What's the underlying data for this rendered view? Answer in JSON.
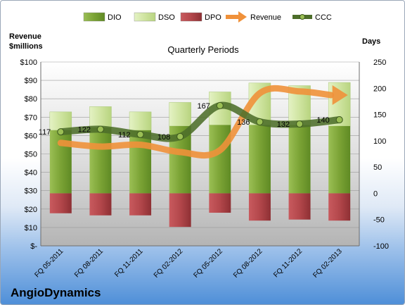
{
  "company": "AngioDynamics",
  "colors": {
    "dio": "#7ba335",
    "dso": "#d3e8a6",
    "dpo": "#b3474b",
    "revenue": "#f0913a",
    "ccc": "#4d6e2a"
  },
  "chart_data": {
    "type": "bar",
    "title": "Quarterly Periods",
    "y_left_label": "Revenue $millions",
    "y_right_label": "Days",
    "y_left_ticks": [
      "$-",
      "$10",
      "$20",
      "$30",
      "$40",
      "$50",
      "$60",
      "$70",
      "$80",
      "$90",
      "$100"
    ],
    "y_right_ticks": [
      "-100",
      "-50",
      "0",
      "50",
      "100",
      "150",
      "200",
      "250"
    ],
    "ylim_left": [
      0,
      100
    ],
    "ylim_right": [
      -100,
      250
    ],
    "categories": [
      "FQ 05-2011",
      "FQ 08-2011",
      "FQ 11-2011",
      "FQ 02-2012",
      "FQ 05-2012",
      "FQ 08-2012",
      "FQ 11-2012",
      "FQ 02-2013"
    ],
    "legend": [
      "DIO",
      "DSO",
      "DPO",
      "Revenue",
      "CCC"
    ],
    "series": [
      {
        "name": "DIO",
        "axis": "right",
        "values": [
          120,
          125,
          120,
          128,
          130,
          130,
          130,
          128
        ]
      },
      {
        "name": "DSO",
        "axis": "right",
        "values": [
          35,
          40,
          35,
          45,
          63,
          80,
          75,
          83
        ]
      },
      {
        "name": "DPO",
        "axis": "right",
        "values": [
          -38,
          -42,
          -42,
          -64,
          -37,
          -52,
          -50,
          -52
        ]
      },
      {
        "name": "Revenue",
        "axis": "left",
        "values": [
          56,
          54,
          55,
          51,
          52,
          83,
          84,
          82
        ]
      },
      {
        "name": "CCC",
        "axis": "right",
        "values": [
          117,
          122,
          112,
          108,
          167,
          136,
          132,
          140
        ]
      }
    ],
    "ccc_labels": [
      "117",
      "122",
      "112",
      "108",
      "167",
      "136",
      "132",
      "140"
    ]
  }
}
